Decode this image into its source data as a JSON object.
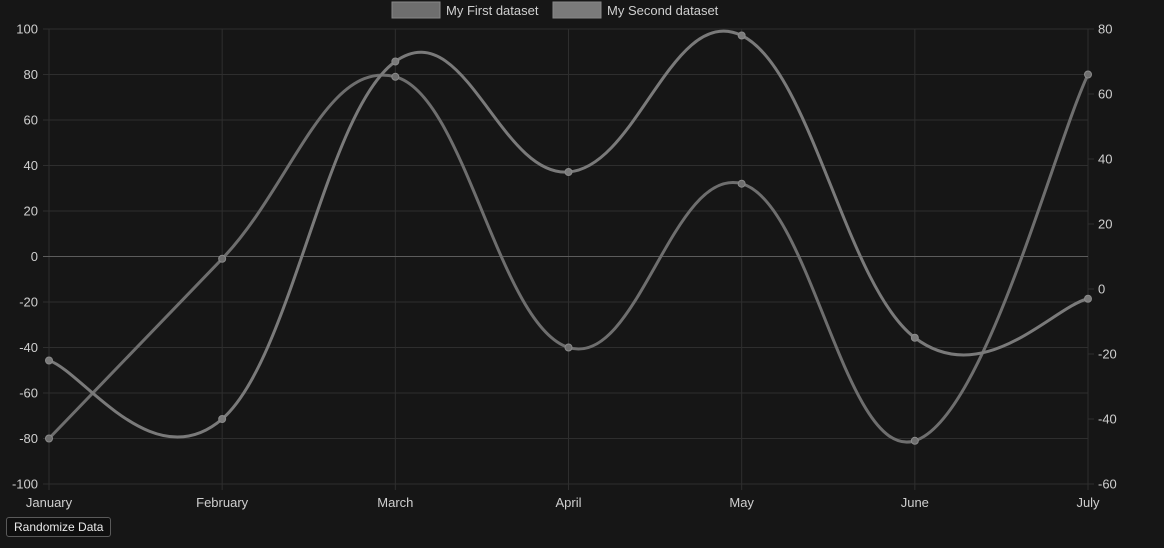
{
  "chart_data": {
    "type": "line",
    "categories": [
      "January",
      "February",
      "March",
      "April",
      "May",
      "June",
      "July"
    ],
    "series": [
      {
        "name": "My First dataset",
        "axis": "left",
        "values": [
          -80,
          -1,
          79,
          -40,
          32,
          -81,
          80
        ],
        "color": "#6e6e6e"
      },
      {
        "name": "My Second dataset",
        "axis": "right",
        "values": [
          -22,
          -40,
          70,
          36,
          78,
          -15,
          -3
        ],
        "color": "#7a7a7a"
      }
    ],
    "y_left": {
      "min": -100,
      "max": 100,
      "ticks": [
        100,
        80,
        60,
        40,
        20,
        0,
        -20,
        -40,
        -60,
        -80,
        -100
      ]
    },
    "y_right": {
      "min": -60,
      "max": 80,
      "ticks": [
        80,
        60,
        40,
        20,
        0,
        -20,
        -40,
        -60
      ]
    },
    "grid": true,
    "legend_position": "top-center"
  },
  "controls": {
    "randomize_label": "Randomize Data"
  },
  "colors": {
    "background": "#161616",
    "grid": "#2e2e2e",
    "zero_line": "#5c5c5c",
    "text": "#cfcfcf"
  }
}
